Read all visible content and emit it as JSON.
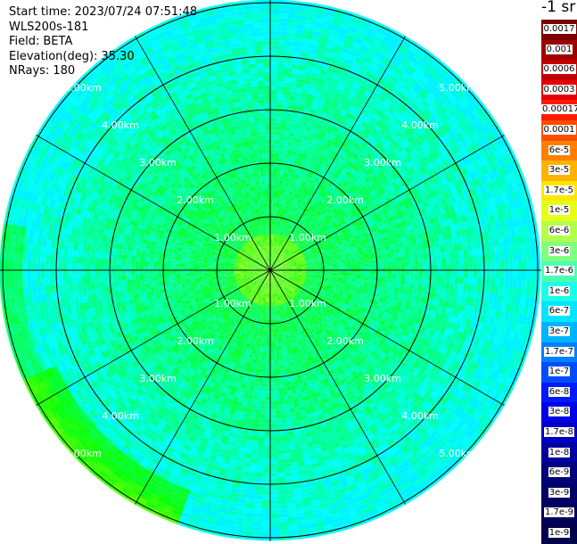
{
  "info": {
    "start_time_label": "Start time:",
    "start_time": "2023/07/24 07:51:48",
    "instrument": "WLS200s-181",
    "field_label": "Field:",
    "field": "BETA",
    "elevation_label": "Elevation(deg):",
    "elevation": "35.30",
    "nrays_label": "NRays:",
    "nrays": "180"
  },
  "unit_label": "-1 sr",
  "range_labels": [
    "1.00km",
    "2.00km",
    "3.00km",
    "4.00km",
    "5.00km"
  ],
  "colorbar": [
    {
      "label": "0.0017",
      "color": "#7a0000"
    },
    {
      "label": "0.001",
      "color": "#9e0000"
    },
    {
      "label": "0.0006",
      "color": "#c20000"
    },
    {
      "label": "0.0003",
      "color": "#e60000"
    },
    {
      "label": "0.00017",
      "color": "#ff1a00"
    },
    {
      "label": "0.0001",
      "color": "#ff4d00"
    },
    {
      "label": "6e-5",
      "color": "#ff8000"
    },
    {
      "label": "3e-5",
      "color": "#ffb300"
    },
    {
      "label": "1.7e-5",
      "color": "#ffe600"
    },
    {
      "label": "1e-5",
      "color": "#e6ff1a"
    },
    {
      "label": "6e-6",
      "color": "#b3ff4d"
    },
    {
      "label": "3e-6",
      "color": "#80ff80"
    },
    {
      "label": "1.7e-6",
      "color": "#4dffb3"
    },
    {
      "label": "1e-6",
      "color": "#1affe6"
    },
    {
      "label": "6e-7",
      "color": "#00e6ff"
    },
    {
      "label": "3e-7",
      "color": "#00b3ff"
    },
    {
      "label": "1.7e-7",
      "color": "#0080ff"
    },
    {
      "label": "1e-7",
      "color": "#004dff"
    },
    {
      "label": "6e-8",
      "color": "#001aff"
    },
    {
      "label": "3e-8",
      "color": "#0000e6"
    },
    {
      "label": "1.7e-8",
      "color": "#0000c2"
    },
    {
      "label": "1e-8",
      "color": "#00009e"
    },
    {
      "label": "6e-9",
      "color": "#00007a"
    },
    {
      "label": "3e-9",
      "color": "#000066"
    },
    {
      "label": "1.7e-9",
      "color": "#00005a"
    },
    {
      "label": "1e-9",
      "color": "#00004d"
    }
  ]
}
